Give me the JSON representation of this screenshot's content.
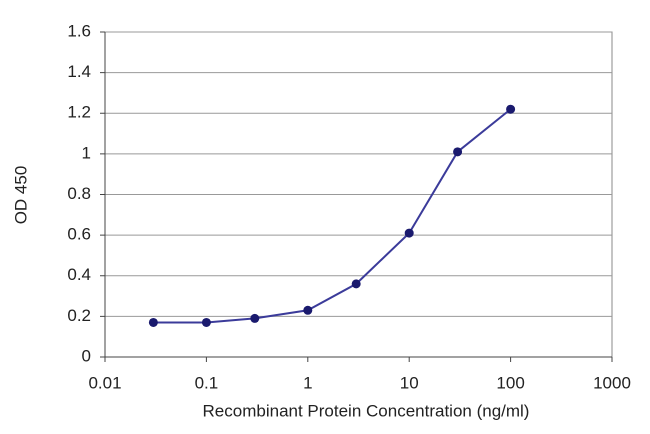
{
  "chart_data": {
    "type": "line",
    "x_label": "Recombinant Protein Concentration (ng/ml)",
    "y_label": "OD 450",
    "x": [
      0.03,
      0.1,
      0.3,
      1,
      3,
      10,
      30,
      100
    ],
    "series": [
      {
        "color": "#3b3b9a",
        "values": [
          0.17,
          0.17,
          0.19,
          0.23,
          0.36,
          0.61,
          1.01,
          1.22
        ]
      }
    ],
    "xlim": [
      0.01,
      1000
    ],
    "xticks": [
      0.01,
      0.1,
      1,
      10,
      100,
      1000
    ],
    "xscale": "log",
    "ylim": [
      0,
      1.6
    ],
    "yticks": [
      0,
      0.2,
      0.4,
      0.6,
      0.8,
      1,
      1.2,
      1.4,
      1.6
    ],
    "grid": true
  }
}
